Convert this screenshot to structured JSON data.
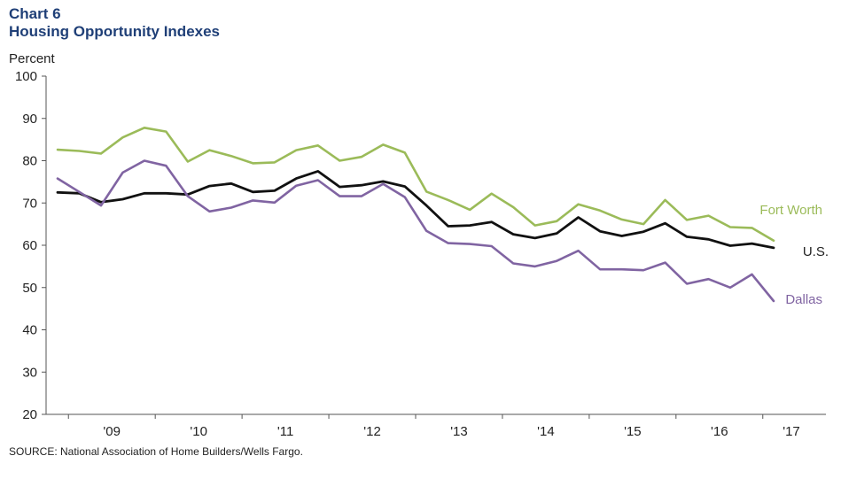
{
  "header": {
    "chart_number": "Chart 6",
    "title": "Housing Opportunity Indexes",
    "y_unit": "Percent"
  },
  "footer": {
    "source": "SOURCE: National Association of Home Builders/Wells Fargo."
  },
  "chart_data": {
    "type": "line",
    "title": "Housing Opportunity Indexes",
    "ylabel": "Percent",
    "xlabel": "",
    "ylim": [
      20,
      100
    ],
    "yticks": [
      20,
      30,
      40,
      50,
      60,
      70,
      80,
      90,
      100
    ],
    "grid": false,
    "legend": "direct labels at right end of lines",
    "x_tick_labels": [
      "'09",
      "'10",
      "'11",
      "'12",
      "'13",
      "'14",
      "'15",
      "'16",
      "'17"
    ],
    "x": [
      "2008 Q4",
      "2009 Q1",
      "2009 Q2",
      "2009 Q3",
      "2009 Q4",
      "2010 Q1",
      "2010 Q2",
      "2010 Q3",
      "2010 Q4",
      "2011 Q1",
      "2011 Q2",
      "2011 Q3",
      "2011 Q4",
      "2012 Q1",
      "2012 Q2",
      "2012 Q3",
      "2012 Q4",
      "2013 Q1",
      "2013 Q2",
      "2013 Q3",
      "2013 Q4",
      "2014 Q1",
      "2014 Q2",
      "2014 Q3",
      "2014 Q4",
      "2015 Q1",
      "2015 Q2",
      "2015 Q3",
      "2015 Q4",
      "2016 Q1",
      "2016 Q2",
      "2016 Q3",
      "2016 Q4",
      "2017 Q1"
    ],
    "series": [
      {
        "name": "Fort Worth",
        "color": "#9bbb59",
        "values": [
          82.6,
          82.3,
          81.7,
          85.5,
          87.8,
          86.9,
          79.8,
          82.5,
          81.1,
          79.4,
          79.6,
          82.5,
          83.6,
          80.0,
          80.9,
          83.8,
          81.9,
          72.7,
          70.7,
          68.4,
          72.2,
          69.0,
          64.7,
          65.7,
          69.7,
          68.2,
          66.1,
          65.0,
          70.7,
          66.0,
          67.0,
          64.3,
          64.1,
          61.1
        ]
      },
      {
        "name": "U.S.",
        "color": "#111111",
        "values": [
          72.5,
          72.3,
          70.2,
          70.9,
          72.3,
          72.3,
          72.0,
          74.0,
          74.6,
          72.6,
          72.9,
          75.8,
          77.5,
          73.8,
          74.2,
          75.1,
          73.9,
          69.4,
          64.5,
          64.7,
          65.5,
          62.6,
          61.7,
          62.8,
          66.6,
          63.3,
          62.2,
          63.2,
          65.2,
          62.0,
          61.4,
          59.9,
          60.4,
          59.4
        ]
      },
      {
        "name": "Dallas",
        "color": "#8064a2",
        "values": [
          75.8,
          72.6,
          69.4,
          77.2,
          80.0,
          78.8,
          71.6,
          68.0,
          68.9,
          70.6,
          70.1,
          74.1,
          75.4,
          71.6,
          71.6,
          74.5,
          71.4,
          63.4,
          60.5,
          60.3,
          59.8,
          55.7,
          55.0,
          56.3,
          58.7,
          54.3,
          54.3,
          54.1,
          55.9,
          50.9,
          52.0,
          50.0,
          53.1,
          46.8
        ]
      }
    ]
  }
}
